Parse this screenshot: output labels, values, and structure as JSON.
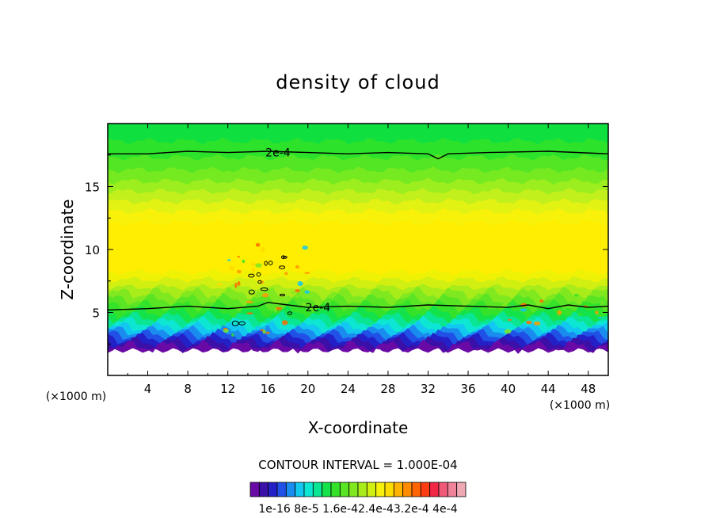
{
  "chart_data": {
    "type": "heatmap",
    "title": "density of cloud",
    "xlabel": "X-coordinate",
    "ylabel": "Z-coordinate",
    "x_unit": "(×1000 m)",
    "y_unit": "(×1000 m)",
    "xlim": [
      0,
      50
    ],
    "ylim": [
      0,
      20
    ],
    "x_ticks": [
      "4",
      "8",
      "12",
      "16",
      "20",
      "24",
      "28",
      "32",
      "36",
      "40",
      "44",
      "48"
    ],
    "x_tick_values": [
      4,
      8,
      12,
      16,
      20,
      24,
      28,
      32,
      36,
      40,
      44,
      48
    ],
    "y_ticks": [
      "5",
      "10",
      "15"
    ],
    "y_tick_values": [
      5,
      10,
      15
    ],
    "contour_interval": "CONTOUR INTERVAL = 1.000E-04",
    "contour_labels": [
      {
        "text": "2e-4",
        "x": 17,
        "z": 17.7
      },
      {
        "text": "2e-4",
        "x": 21,
        "z": 5.4
      }
    ],
    "contour_lines": [
      {
        "level": "2e-4",
        "points": [
          [
            0,
            17.6
          ],
          [
            4,
            17.6
          ],
          [
            8,
            17.8
          ],
          [
            12,
            17.7
          ],
          [
            16,
            17.8
          ],
          [
            20,
            17.7
          ],
          [
            24,
            17.6
          ],
          [
            28,
            17.7
          ],
          [
            32,
            17.6
          ],
          [
            33,
            17.2
          ],
          [
            34,
            17.6
          ],
          [
            38,
            17.7
          ],
          [
            44,
            17.8
          ],
          [
            50,
            17.6
          ]
        ]
      },
      {
        "level": "2e-4",
        "points": [
          [
            0,
            5.2
          ],
          [
            4,
            5.3
          ],
          [
            8,
            5.5
          ],
          [
            12,
            5.3
          ],
          [
            15,
            5.5
          ],
          [
            16,
            5.8
          ],
          [
            18,
            5.6
          ],
          [
            20,
            5.4
          ],
          [
            24,
            5.5
          ],
          [
            28,
            5.4
          ],
          [
            32,
            5.6
          ],
          [
            36,
            5.5
          ],
          [
            40,
            5.4
          ],
          [
            42,
            5.6
          ],
          [
            44,
            5.3
          ],
          [
            46,
            5.6
          ],
          [
            48,
            5.4
          ],
          [
            50,
            5.5
          ]
        ]
      }
    ],
    "bands": [
      {
        "z_top": 20,
        "z_bottom": 18.6,
        "color": "#0fe040"
      },
      {
        "z_top": 18.6,
        "z_bottom": 17.3,
        "color": "#2de22b"
      },
      {
        "z_top": 17.3,
        "z_bottom": 16.3,
        "color": "#53e625"
      },
      {
        "z_top": 16.3,
        "z_bottom": 15.4,
        "color": "#76ea20"
      },
      {
        "z_top": 15.4,
        "z_bottom": 14.6,
        "color": "#9cee1e"
      },
      {
        "z_top": 14.6,
        "z_bottom": 13.8,
        "color": "#c2f01c"
      },
      {
        "z_top": 13.8,
        "z_bottom": 13.0,
        "color": "#e2f213"
      },
      {
        "z_top": 13.0,
        "z_bottom": 12.1,
        "color": "#f8f20a"
      },
      {
        "z_top": 12.1,
        "z_bottom": 8.2,
        "color": "#ffee00"
      },
      {
        "z_top": 8.2,
        "z_bottom": 7.6,
        "color": "#f0f205"
      },
      {
        "z_top": 7.6,
        "z_bottom": 7.0,
        "color": "#d2ef12"
      },
      {
        "z_top": 7.0,
        "z_bottom": 6.5,
        "color": "#a8ec1a"
      },
      {
        "z_top": 6.5,
        "z_bottom": 6.0,
        "color": "#80e81f"
      },
      {
        "z_top": 6.0,
        "z_bottom": 5.5,
        "color": "#5ae524"
      },
      {
        "z_top": 5.5,
        "z_bottom": 5.0,
        "color": "#34e22a"
      },
      {
        "z_top": 5.0,
        "z_bottom": 4.6,
        "color": "#14e24a"
      },
      {
        "z_top": 4.6,
        "z_bottom": 4.2,
        "color": "#0ae594"
      },
      {
        "z_top": 4.2,
        "z_bottom": 3.8,
        "color": "#0ee6d4"
      },
      {
        "z_top": 3.8,
        "z_bottom": 3.5,
        "color": "#12c8f0"
      },
      {
        "z_top": 3.5,
        "z_bottom": 3.2,
        "color": "#1a8cf0"
      },
      {
        "z_top": 3.2,
        "z_bottom": 2.9,
        "color": "#2050e6"
      },
      {
        "z_top": 2.9,
        "z_bottom": 2.6,
        "color": "#2420c8"
      },
      {
        "z_top": 2.6,
        "z_bottom": 2.3,
        "color": "#3a10a8"
      },
      {
        "z_top": 2.3,
        "z_bottom": 2.0,
        "color": "#6a0aa6"
      }
    ],
    "colorbar": {
      "colors": [
        "#6a0aa6",
        "#3a10a8",
        "#2420c8",
        "#2050e6",
        "#1a8cf0",
        "#12c8f0",
        "#0ee6d4",
        "#0ae594",
        "#14e24a",
        "#34e22a",
        "#5ae524",
        "#80e81f",
        "#a8ec1a",
        "#d2ef12",
        "#f8f20a",
        "#ffdc00",
        "#ffb400",
        "#ff8c00",
        "#ff6400",
        "#ff3c14",
        "#f02846",
        "#f05a78",
        "#f0829a",
        "#f0a8b4"
      ],
      "labels": [
        "1e-16",
        "8e-5",
        "1.6e-4",
        "2.4e-4",
        "3.2e-4",
        "4e-4"
      ],
      "label_text": "1e-16 8e-5 1.6e-42.4e-43.2e-4 4e-4"
    }
  }
}
